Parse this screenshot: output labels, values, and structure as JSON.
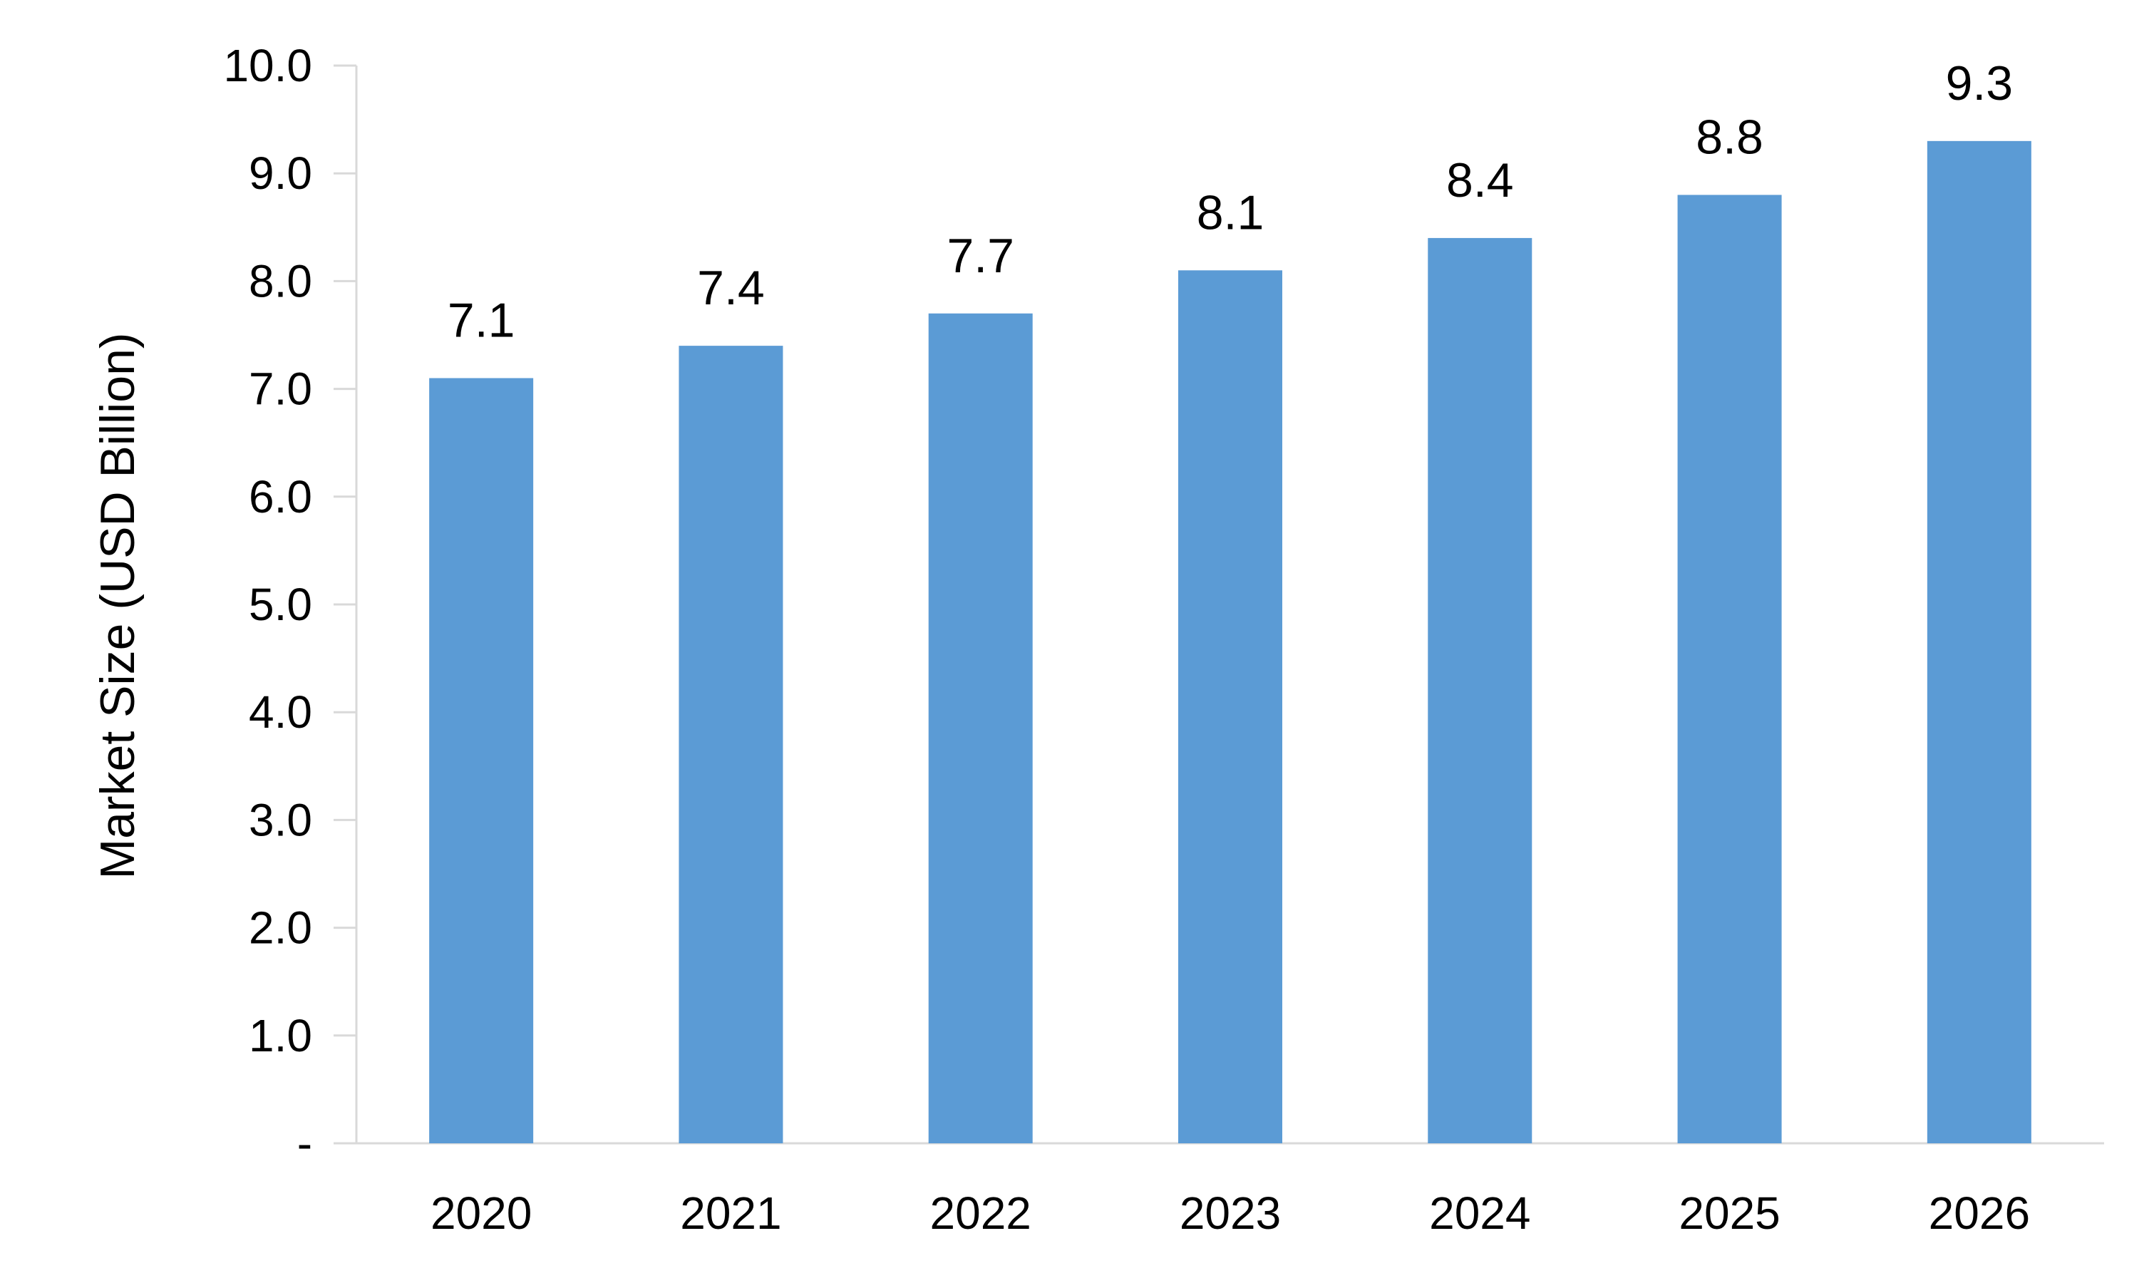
{
  "chart_data": {
    "type": "bar",
    "categories": [
      "2020",
      "2021",
      "2022",
      "2023",
      "2024",
      "2025",
      "2026"
    ],
    "values": [
      7.1,
      7.4,
      7.7,
      8.1,
      8.4,
      8.8,
      9.3
    ],
    "data_labels": [
      "7.1",
      "7.4",
      "7.7",
      "8.1",
      "8.4",
      "8.8",
      "9.3"
    ],
    "title": "",
    "xlabel": "",
    "ylabel": "Market Size (USD Billion)",
    "ylim": [
      0,
      10
    ],
    "y_ticks": [
      0,
      1,
      2,
      3,
      4,
      5,
      6,
      7,
      8,
      9,
      10
    ],
    "y_tick_labels": [
      "-",
      "1.0",
      "2.0",
      "3.0",
      "4.0",
      "5.0",
      "6.0",
      "7.0",
      "8.0",
      "9.0",
      "10.0"
    ],
    "grid": false,
    "legend": "none",
    "bar_color": "#5B9BD5",
    "axis_color": "#D9D9D9"
  }
}
